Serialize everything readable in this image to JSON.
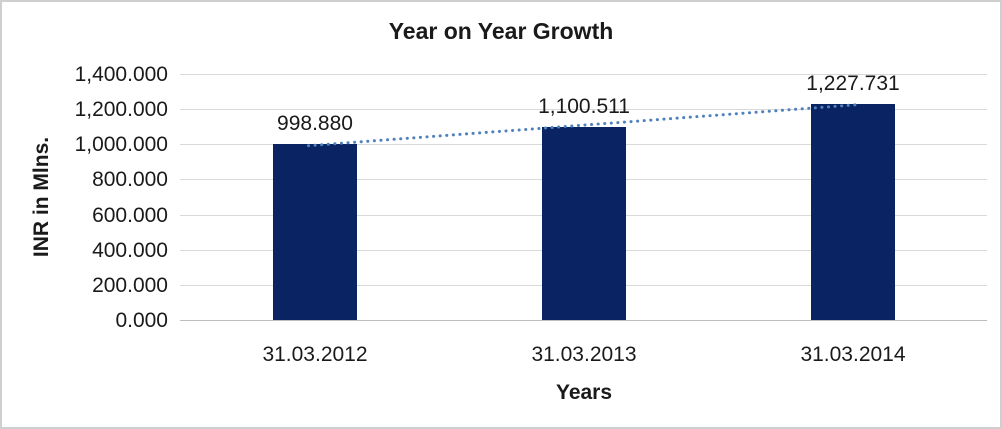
{
  "chart_data": {
    "type": "bar",
    "title": "Year on Year Growth",
    "xlabel": "Years",
    "ylabel": "INR in Mlns.",
    "categories": [
      "31.03.2012",
      "31.03.2013",
      "31.03.2014"
    ],
    "values": [
      998.88,
      1100.511,
      1227.731
    ],
    "value_labels": [
      "998.880",
      "1,100.511",
      "1,227.731"
    ],
    "ylim": [
      0,
      1400
    ],
    "ytick_step": 200,
    "ytick_labels_top_to_bottom": [
      "1,400.000",
      "1,200.000",
      "1,000.000",
      "800.000",
      "600.000",
      "400.000",
      "200.000",
      "0.000"
    ],
    "grid": true,
    "legend_position": "none",
    "trendline": {
      "type": "linear",
      "style": "dotted"
    },
    "colors": {
      "bar": "#0A2463",
      "trendline": "#4F81BD",
      "gridline": "#D9D9D9",
      "axis_line": "#BDBDBD",
      "text": "#1a1a1a",
      "frame_border": "#CFCFCF",
      "background": "#FFFFFF"
    }
  }
}
